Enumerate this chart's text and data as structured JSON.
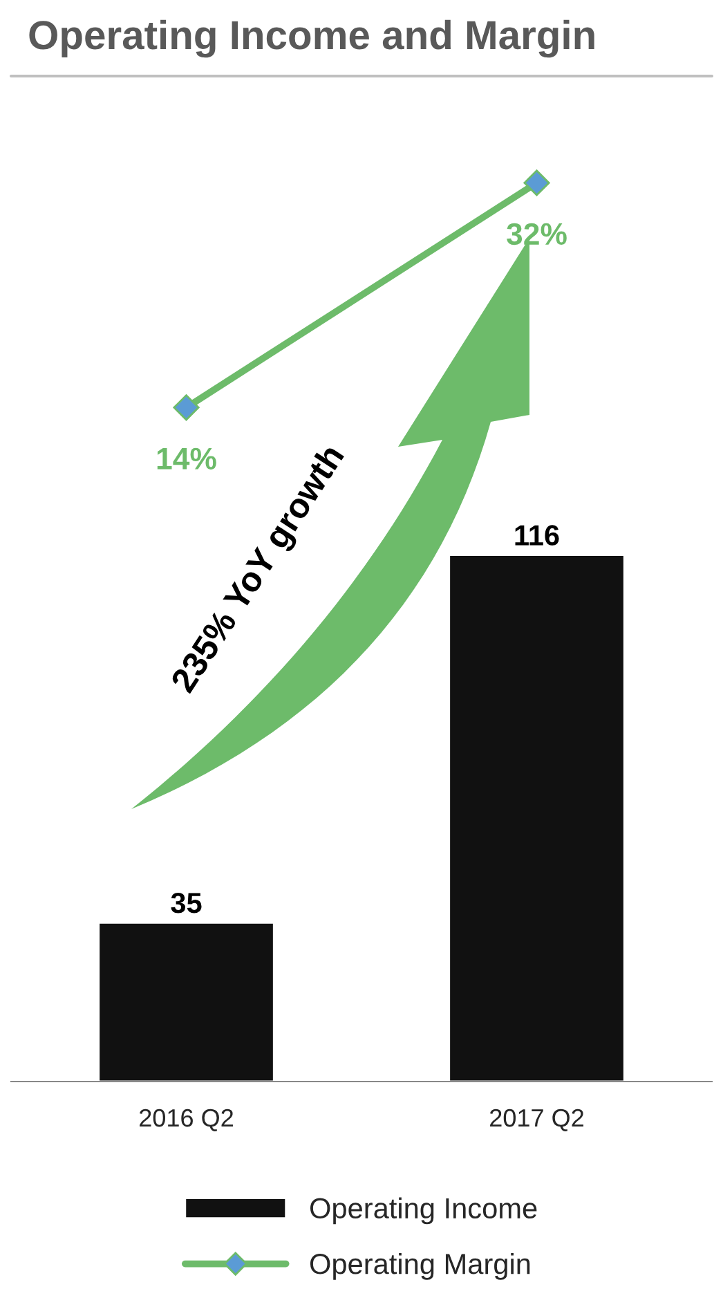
{
  "chart_data": {
    "type": "bar",
    "title": "Operating Income and Margin",
    "categories": [
      "2016 Q2",
      "2017 Q2"
    ],
    "series": [
      {
        "name": "Operating Income",
        "color": "#111111",
        "values": [
          35,
          116
        ],
        "value_labels": [
          "35",
          "116"
        ]
      },
      {
        "name": "Operating Margin",
        "type": "line",
        "axis": "y2",
        "color": "#6dbb6a",
        "marker": "diamond",
        "values": [
          14,
          32
        ],
        "value_labels": [
          "14%",
          "32%"
        ]
      }
    ],
    "ylim": [
      0,
      220
    ],
    "y2lim": [
      -40,
      40
    ],
    "tick_labels": "x",
    "grid": false,
    "legend": "bottom",
    "annotations": [
      "235% YoY growth"
    ]
  }
}
